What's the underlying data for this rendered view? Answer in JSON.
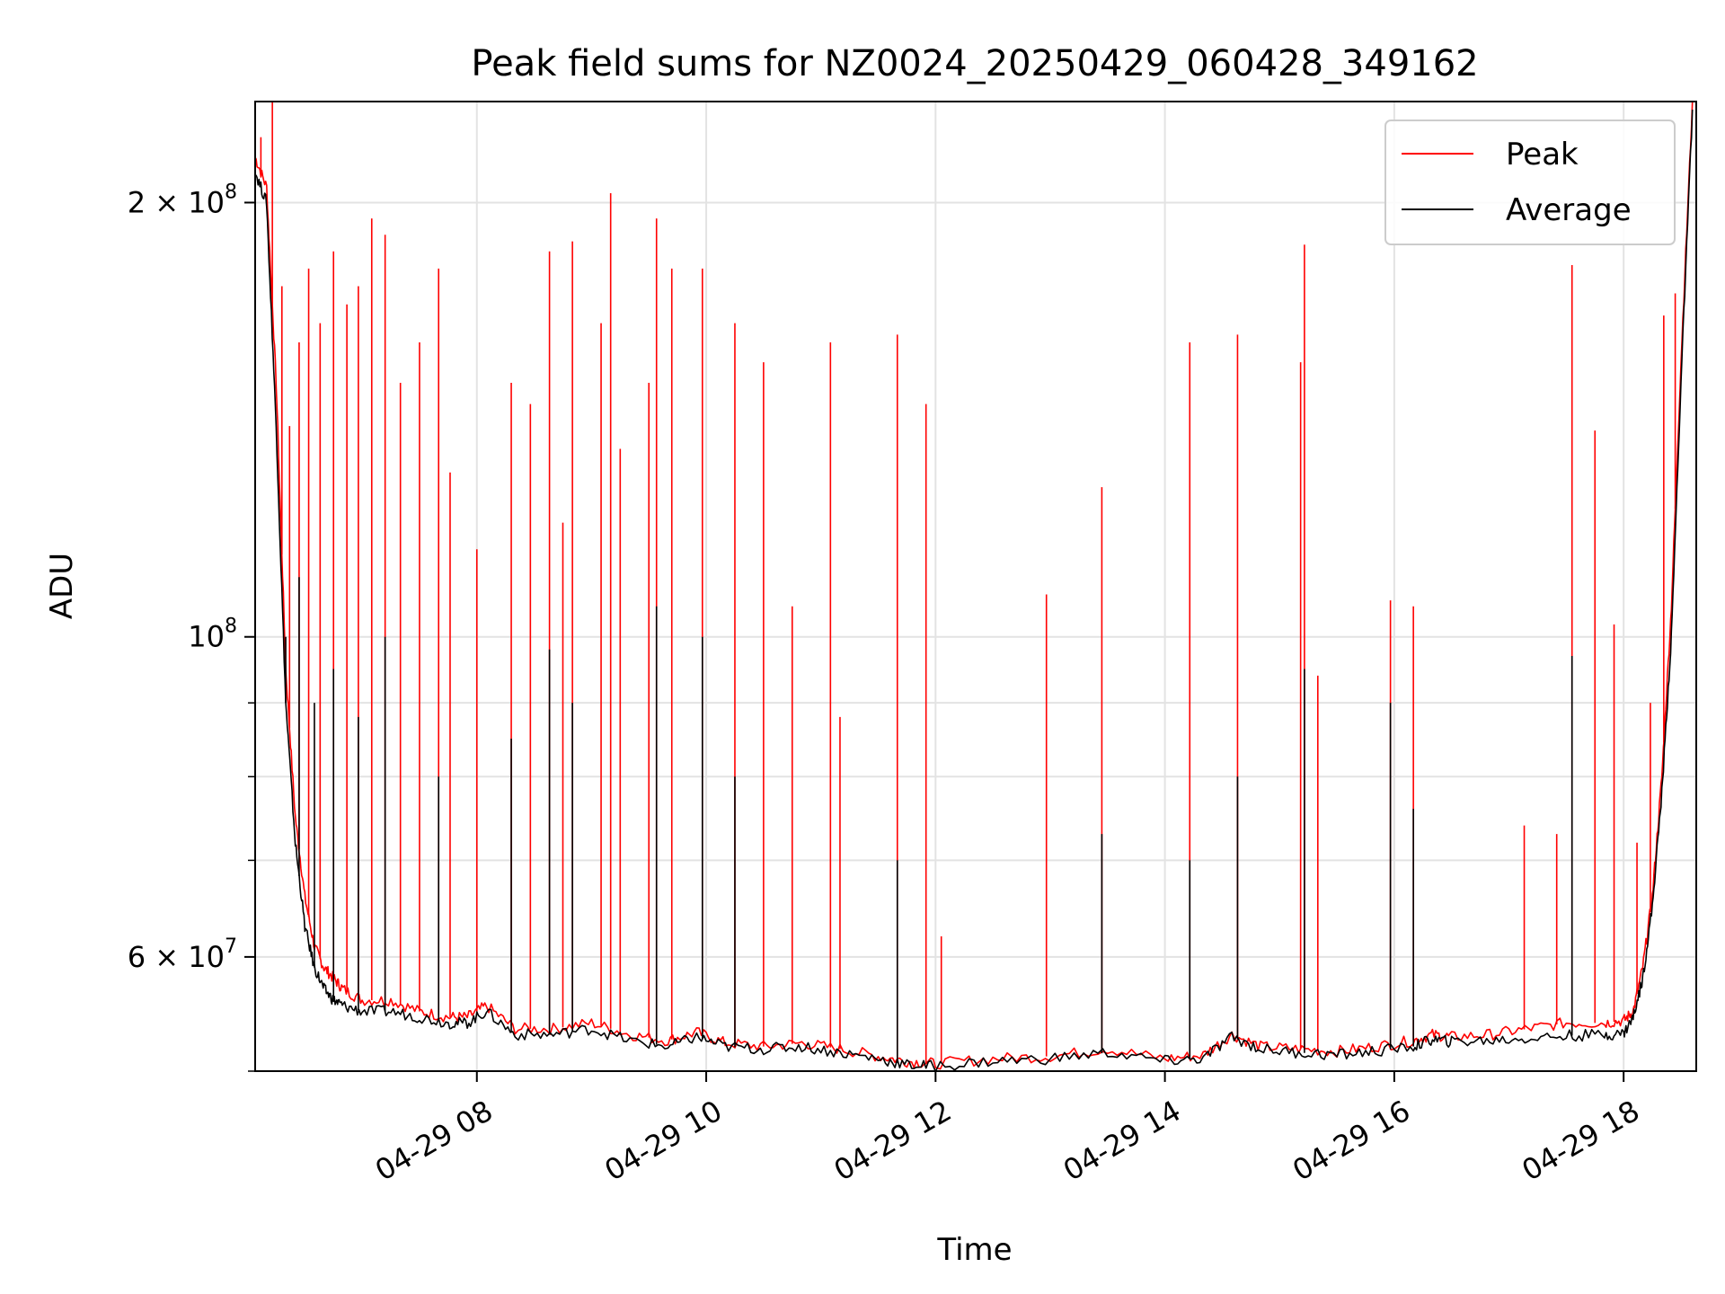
{
  "chart_data": {
    "type": "line",
    "title": "Peak field sums for NZ0024_20250429_060428_349162",
    "xlabel": "Time",
    "ylabel": "ADU",
    "yscale": "log",
    "xlim": [
      "2025-04-29 06:04",
      "2025-04-29 18:38"
    ],
    "ylim": [
      50000000,
      235000000
    ],
    "grid": true,
    "legend_position": "top-right",
    "x_ticks": [
      {
        "value": "2025-04-29 08:00",
        "label": "04-29 08"
      },
      {
        "value": "2025-04-29 10:00",
        "label": "04-29 10"
      },
      {
        "value": "2025-04-29 12:00",
        "label": "04-29 12"
      },
      {
        "value": "2025-04-29 14:00",
        "label": "04-29 14"
      },
      {
        "value": "2025-04-29 16:00",
        "label": "04-29 16"
      },
      {
        "value": "2025-04-29 18:00",
        "label": "04-29 18"
      }
    ],
    "y_ticks": [
      {
        "value": 200000000,
        "base": "2 × 10",
        "exp": "8"
      },
      {
        "value": 100000000,
        "base": "10",
        "exp": "8"
      },
      {
        "value": 60000000,
        "base": "6 × 10",
        "exp": "7"
      }
    ],
    "y_minor_ticks": [
      70000000,
      80000000,
      90000000
    ],
    "series": [
      {
        "name": "Peak",
        "color": "#ff0000",
        "x": [
          "2025-04-29 06:04",
          "2025-04-29 06:10",
          "2025-04-29 06:15",
          "2025-04-29 06:20",
          "2025-04-29 06:25",
          "2025-04-29 06:30",
          "2025-04-29 06:35",
          "2025-04-29 06:40",
          "2025-04-29 06:45",
          "2025-04-29 06:50",
          "2025-04-29 07:00",
          "2025-04-29 07:15",
          "2025-04-29 07:30",
          "2025-04-29 07:45",
          "2025-04-29 07:55",
          "2025-04-29 08:05",
          "2025-04-29 08:20",
          "2025-04-29 08:40",
          "2025-04-29 09:00",
          "2025-04-29 09:20",
          "2025-04-29 09:40",
          "2025-04-29 09:55",
          "2025-04-29 10:10",
          "2025-04-29 10:30",
          "2025-04-29 10:50",
          "2025-04-29 11:10",
          "2025-04-29 11:30",
          "2025-04-29 11:45",
          "2025-04-29 12:00",
          "2025-04-29 12:30",
          "2025-04-29 13:00",
          "2025-04-29 13:30",
          "2025-04-29 14:00",
          "2025-04-29 14:20",
          "2025-04-29 14:35",
          "2025-04-29 14:50",
          "2025-04-29 15:10",
          "2025-04-29 15:30",
          "2025-04-29 15:50",
          "2025-04-29 16:10",
          "2025-04-29 16:20",
          "2025-04-29 16:30",
          "2025-04-29 16:50",
          "2025-04-29 17:10",
          "2025-04-29 17:30",
          "2025-04-29 17:50",
          "2025-04-29 18:00",
          "2025-04-29 18:05",
          "2025-04-29 18:10",
          "2025-04-29 18:15",
          "2025-04-29 18:20",
          "2025-04-29 18:25",
          "2025-04-29 18:30",
          "2025-04-29 18:36"
        ],
        "values": [
          215000000,
          205000000,
          150000000,
          95000000,
          75000000,
          66000000,
          61000000,
          59000000,
          58000000,
          57000000,
          56000000,
          56000000,
          55000000,
          54500000,
          54500000,
          55500000,
          53500000,
          53500000,
          54000000,
          53000000,
          52500000,
          53200000,
          52300000,
          52000000,
          52300000,
          51800000,
          51200000,
          50800000,
          50600000,
          51000000,
          51200000,
          51800000,
          51000000,
          51300000,
          53000000,
          52000000,
          51800000,
          51600000,
          52000000,
          52500000,
          53000000,
          52800000,
          53000000,
          53500000,
          54000000,
          54000000,
          54200000,
          55000000,
          59000000,
          66000000,
          80000000,
          105000000,
          155000000,
          235000000
        ],
        "spikes": [
          {
            "x": "2025-04-29 06:07",
            "y": 222000000
          },
          {
            "x": "2025-04-29 06:13",
            "y": 240000000
          },
          {
            "x": "2025-04-29 06:18",
            "y": 175000000
          },
          {
            "x": "2025-04-29 06:22",
            "y": 140000000
          },
          {
            "x": "2025-04-29 06:27",
            "y": 160000000
          },
          {
            "x": "2025-04-29 06:32",
            "y": 180000000
          },
          {
            "x": "2025-04-29 06:38",
            "y": 165000000
          },
          {
            "x": "2025-04-29 06:45",
            "y": 185000000
          },
          {
            "x": "2025-04-29 06:52",
            "y": 170000000
          },
          {
            "x": "2025-04-29 06:58",
            "y": 175000000
          },
          {
            "x": "2025-04-29 07:05",
            "y": 195000000
          },
          {
            "x": "2025-04-29 07:12",
            "y": 190000000
          },
          {
            "x": "2025-04-29 07:20",
            "y": 150000000
          },
          {
            "x": "2025-04-29 07:30",
            "y": 160000000
          },
          {
            "x": "2025-04-29 07:40",
            "y": 180000000
          },
          {
            "x": "2025-04-29 07:46",
            "y": 130000000
          },
          {
            "x": "2025-04-29 08:00",
            "y": 115000000
          },
          {
            "x": "2025-04-29 08:18",
            "y": 150000000
          },
          {
            "x": "2025-04-29 08:28",
            "y": 145000000
          },
          {
            "x": "2025-04-29 08:38",
            "y": 185000000
          },
          {
            "x": "2025-04-29 08:45",
            "y": 120000000
          },
          {
            "x": "2025-04-29 08:50",
            "y": 188000000
          },
          {
            "x": "2025-04-29 09:05",
            "y": 165000000
          },
          {
            "x": "2025-04-29 09:10",
            "y": 203000000
          },
          {
            "x": "2025-04-29 09:15",
            "y": 135000000
          },
          {
            "x": "2025-04-29 09:30",
            "y": 150000000
          },
          {
            "x": "2025-04-29 09:34",
            "y": 195000000
          },
          {
            "x": "2025-04-29 09:42",
            "y": 180000000
          },
          {
            "x": "2025-04-29 09:58",
            "y": 180000000
          },
          {
            "x": "2025-04-29 10:15",
            "y": 165000000
          },
          {
            "x": "2025-04-29 10:30",
            "y": 155000000
          },
          {
            "x": "2025-04-29 10:45",
            "y": 105000000
          },
          {
            "x": "2025-04-29 11:05",
            "y": 160000000
          },
          {
            "x": "2025-04-29 11:10",
            "y": 88000000
          },
          {
            "x": "2025-04-29 11:40",
            "y": 162000000
          },
          {
            "x": "2025-04-29 11:55",
            "y": 145000000
          },
          {
            "x": "2025-04-29 12:03",
            "y": 62000000
          },
          {
            "x": "2025-04-29 12:58",
            "y": 107000000
          },
          {
            "x": "2025-04-29 13:27",
            "y": 127000000
          },
          {
            "x": "2025-04-29 14:13",
            "y": 160000000
          },
          {
            "x": "2025-04-29 14:38",
            "y": 162000000
          },
          {
            "x": "2025-04-29 15:11",
            "y": 155000000
          },
          {
            "x": "2025-04-29 15:13",
            "y": 187000000
          },
          {
            "x": "2025-04-29 15:20",
            "y": 94000000
          },
          {
            "x": "2025-04-29 15:58",
            "y": 106000000
          },
          {
            "x": "2025-04-29 16:10",
            "y": 105000000
          },
          {
            "x": "2025-04-29 17:08",
            "y": 74000000
          },
          {
            "x": "2025-04-29 17:25",
            "y": 73000000
          },
          {
            "x": "2025-04-29 17:33",
            "y": 181000000
          },
          {
            "x": "2025-04-29 17:45",
            "y": 139000000
          },
          {
            "x": "2025-04-29 17:55",
            "y": 102000000
          },
          {
            "x": "2025-04-29 18:07",
            "y": 72000000
          },
          {
            "x": "2025-04-29 18:14",
            "y": 90000000
          },
          {
            "x": "2025-04-29 18:21",
            "y": 167000000
          },
          {
            "x": "2025-04-29 18:27",
            "y": 173000000
          }
        ]
      },
      {
        "name": "Average",
        "color": "#000000",
        "x": [
          "2025-04-29 06:04",
          "2025-04-29 06:10",
          "2025-04-29 06:15",
          "2025-04-29 06:20",
          "2025-04-29 06:25",
          "2025-04-29 06:30",
          "2025-04-29 06:35",
          "2025-04-29 06:40",
          "2025-04-29 06:45",
          "2025-04-29 06:50",
          "2025-04-29 07:00",
          "2025-04-29 07:15",
          "2025-04-29 07:30",
          "2025-04-29 07:45",
          "2025-04-29 07:55",
          "2025-04-29 08:05",
          "2025-04-29 08:20",
          "2025-04-29 08:40",
          "2025-04-29 09:00",
          "2025-04-29 09:20",
          "2025-04-29 09:40",
          "2025-04-29 09:55",
          "2025-04-29 10:10",
          "2025-04-29 10:30",
          "2025-04-29 10:50",
          "2025-04-29 11:10",
          "2025-04-29 11:30",
          "2025-04-29 11:45",
          "2025-04-29 12:00",
          "2025-04-29 12:30",
          "2025-04-29 13:00",
          "2025-04-29 13:30",
          "2025-04-29 14:00",
          "2025-04-29 14:20",
          "2025-04-29 14:35",
          "2025-04-29 14:50",
          "2025-04-29 15:10",
          "2025-04-29 15:30",
          "2025-04-29 15:50",
          "2025-04-29 16:10",
          "2025-04-29 16:20",
          "2025-04-29 16:30",
          "2025-04-29 16:50",
          "2025-04-29 17:10",
          "2025-04-29 17:30",
          "2025-04-29 17:50",
          "2025-04-29 18:00",
          "2025-04-29 18:05",
          "2025-04-29 18:10",
          "2025-04-29 18:15",
          "2025-04-29 18:20",
          "2025-04-29 18:25",
          "2025-04-29 18:30",
          "2025-04-29 18:36"
        ],
        "values": [
          210000000,
          200000000,
          140000000,
          90000000,
          72000000,
          63000000,
          59000000,
          57000000,
          56000000,
          55500000,
          55000000,
          55000000,
          54500000,
          54000000,
          54000000,
          55000000,
          53000000,
          53000000,
          53500000,
          52500000,
          52000000,
          52800000,
          52000000,
          51800000,
          52000000,
          51500000,
          51000000,
          50500000,
          50400000,
          50800000,
          51000000,
          51500000,
          50800000,
          51000000,
          52800000,
          51800000,
          51500000,
          51300000,
          51600000,
          52000000,
          52600000,
          52400000,
          52500000,
          52700000,
          52900000,
          53000000,
          53100000,
          54500000,
          58000000,
          65000000,
          78000000,
          100000000,
          150000000,
          232000000
        ],
        "spikes": [
          {
            "x": "2025-04-29 06:20",
            "y": 100000000
          },
          {
            "x": "2025-04-29 06:27",
            "y": 110000000
          },
          {
            "x": "2025-04-29 06:35",
            "y": 90000000
          },
          {
            "x": "2025-04-29 06:45",
            "y": 95000000
          },
          {
            "x": "2025-04-29 06:58",
            "y": 88000000
          },
          {
            "x": "2025-04-29 07:12",
            "y": 100000000
          },
          {
            "x": "2025-04-29 07:40",
            "y": 80000000
          },
          {
            "x": "2025-04-29 08:18",
            "y": 85000000
          },
          {
            "x": "2025-04-29 08:38",
            "y": 98000000
          },
          {
            "x": "2025-04-29 08:50",
            "y": 90000000
          },
          {
            "x": "2025-04-29 09:34",
            "y": 105000000
          },
          {
            "x": "2025-04-29 09:58",
            "y": 100000000
          },
          {
            "x": "2025-04-29 10:15",
            "y": 80000000
          },
          {
            "x": "2025-04-29 11:40",
            "y": 70000000
          },
          {
            "x": "2025-04-29 14:38",
            "y": 80000000
          },
          {
            "x": "2025-04-29 15:13",
            "y": 95000000
          },
          {
            "x": "2025-04-29 15:58",
            "y": 90000000
          },
          {
            "x": "2025-04-29 16:10",
            "y": 76000000
          },
          {
            "x": "2025-04-29 17:33",
            "y": 97000000
          },
          {
            "x": "2025-04-29 13:27",
            "y": 73000000
          },
          {
            "x": "2025-04-29 14:13",
            "y": 70000000
          }
        ]
      }
    ]
  }
}
